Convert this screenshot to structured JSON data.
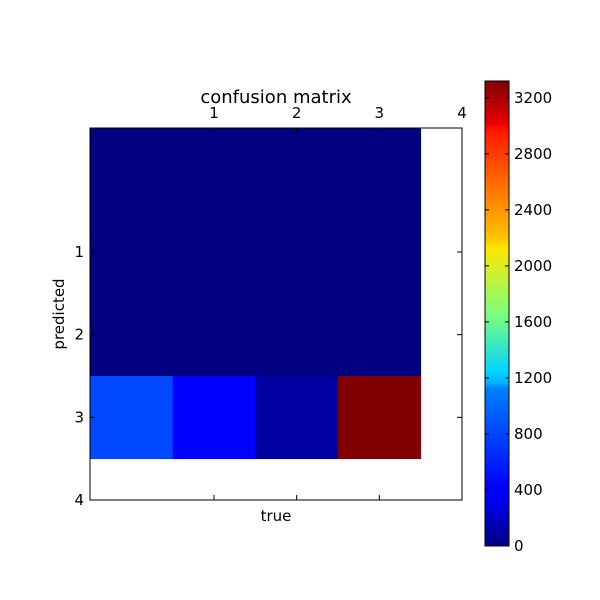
{
  "chart_data": {
    "type": "heatmap",
    "title": "confusion matrix",
    "xlabel": "true",
    "ylabel": "predicted",
    "x_tick_labels": [
      "1",
      "2",
      "3",
      "4"
    ],
    "y_tick_labels": [
      "1",
      "2",
      "3",
      "4"
    ],
    "x_range": [
      -0.5,
      4.0
    ],
    "y_range": [
      -0.5,
      4.0
    ],
    "matrix": [
      [
        0,
        0,
        0,
        0
      ],
      [
        0,
        0,
        0,
        0
      ],
      [
        0,
        0,
        0,
        0
      ],
      [
        650,
        420,
        110,
        3320
      ]
    ],
    "matrix_row_labels": [
      "0",
      "1",
      "2",
      "3"
    ],
    "matrix_col_labels": [
      "0",
      "1",
      "2",
      "3"
    ],
    "colormap": "jet",
    "colorbar": {
      "min": 0,
      "max": 3320,
      "ticks": [
        0,
        400,
        800,
        1200,
        1600,
        2000,
        2400,
        2800,
        3200
      ],
      "tick_labels": [
        "0",
        "400",
        "800",
        "1200",
        "1600",
        "2000",
        "2400",
        "2800",
        "3200"
      ]
    }
  }
}
